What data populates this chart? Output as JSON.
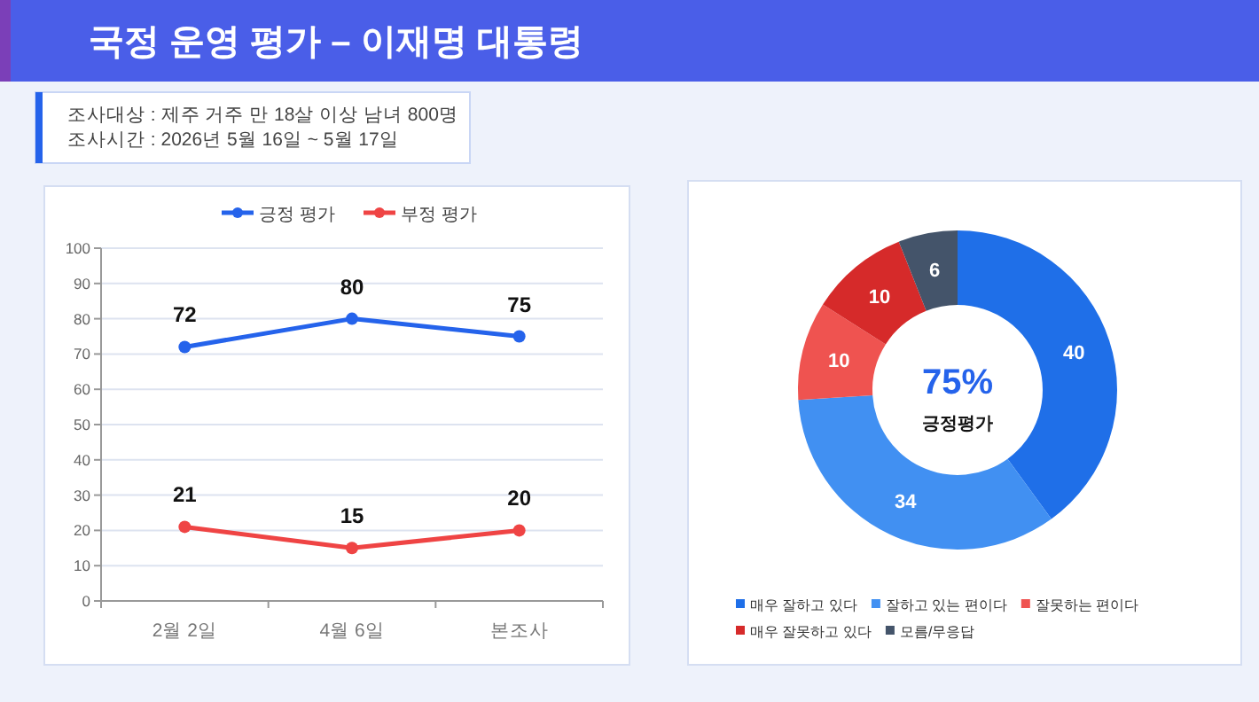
{
  "chart_data": [
    {
      "type": "line",
      "title": "국정 운영 평가 – 이재명 대통령",
      "annotations": [
        "조사대상 : 제주 거주 만 18살 이상 남녀 800명",
        "조사시간 : 2026년 5월 16일 ~ 5월 17일"
      ],
      "categories": [
        "2월 2일",
        "4월 6일",
        "본조사"
      ],
      "series": [
        {
          "name": "긍정 평가",
          "color": "#2563eb",
          "values": [
            72,
            80,
            75
          ]
        },
        {
          "name": "부정 평가",
          "color": "#ef4444",
          "values": [
            21,
            15,
            20
          ]
        }
      ],
      "ylim": [
        0,
        100
      ],
      "yticks": [
        0,
        10,
        20,
        30,
        40,
        50,
        60,
        70,
        80,
        90,
        100
      ],
      "grid": "y",
      "legend": "top",
      "marker": "circle",
      "line_style": "solid",
      "data_labels": true
    },
    {
      "type": "donut",
      "categories": [
        "매우 잘하고 있다",
        "잘하고 있는 편이다",
        "잘못하는 편이다",
        "매우 잘못하고 있다",
        "모름/무응답"
      ],
      "values": [
        40,
        34,
        10,
        10,
        6
      ],
      "colors": [
        "#1f6fe8",
        "#4190f2",
        "#ef5350",
        "#d62a2a",
        "#44546a"
      ],
      "annotations": [
        "75%",
        "긍정평가"
      ],
      "legend": "bottom",
      "data_labels": true
    }
  ]
}
